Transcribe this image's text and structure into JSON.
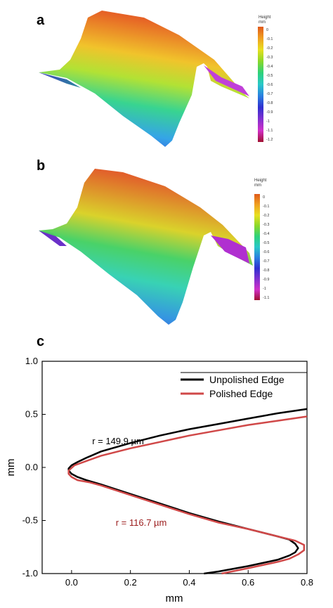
{
  "panels": {
    "a": {
      "letter": "a",
      "colorbar": {
        "title": "Height",
        "unit": "mm",
        "ticks": [
          "0",
          "-0.1",
          "-0.2",
          "-0.3",
          "-0.4",
          "-0.5",
          "-0.6",
          "-0.7",
          "-0.8",
          "-0.9",
          "-1",
          "-1.1",
          "-1.2"
        ]
      }
    },
    "b": {
      "letter": "b",
      "colorbar": {
        "title": "Height",
        "unit": "mm",
        "ticks": [
          "0",
          "-0.1",
          "-0.2",
          "-0.3",
          "-0.4",
          "-0.5",
          "-0.6",
          "-0.7",
          "-0.8",
          "-0.9",
          "-1",
          "-1.1"
        ]
      }
    },
    "c": {
      "letter": "c"
    }
  },
  "colors": {
    "unpolished": "#000000",
    "polished": "#d04848",
    "annotation_polished": "#9b1c1c"
  },
  "chart_data": {
    "type": "line",
    "title": "",
    "xlabel": "mm",
    "ylabel": "mm",
    "xlim": [
      -0.1,
      0.8
    ],
    "ylim": [
      -1.0,
      1.0
    ],
    "xticks": [
      "0.0",
      "0.2",
      "0.4",
      "0.6",
      "0.8"
    ],
    "yticks": [
      "1.0",
      "0.5",
      "0.0",
      "-0.5",
      "-1.0"
    ],
    "legend_position": "top-right",
    "series": [
      {
        "name": "Unpolished Edge",
        "x": [
          0.8,
          0.7,
          0.6,
          0.5,
          0.4,
          0.3,
          0.2,
          0.1,
          0.05,
          0.02,
          0.0,
          -0.01,
          -0.01,
          0.0,
          0.02,
          0.05,
          0.1,
          0.2,
          0.3,
          0.4,
          0.5,
          0.6,
          0.7,
          0.74,
          0.76,
          0.77,
          0.76,
          0.74,
          0.7,
          0.6,
          0.5,
          0.45
        ],
        "y": [
          0.55,
          0.51,
          0.46,
          0.41,
          0.36,
          0.3,
          0.23,
          0.15,
          0.09,
          0.05,
          0.02,
          -0.01,
          -0.03,
          -0.06,
          -0.09,
          -0.12,
          -0.16,
          -0.25,
          -0.34,
          -0.43,
          -0.51,
          -0.58,
          -0.65,
          -0.68,
          -0.72,
          -0.76,
          -0.8,
          -0.83,
          -0.87,
          -0.93,
          -0.98,
          -1.0
        ]
      },
      {
        "name": "Polished Edge",
        "x": [
          0.8,
          0.7,
          0.6,
          0.5,
          0.4,
          0.3,
          0.2,
          0.1,
          0.05,
          0.01,
          -0.01,
          -0.01,
          0.0,
          0.02,
          0.06,
          0.1,
          0.2,
          0.3,
          0.4,
          0.5,
          0.6,
          0.7,
          0.76,
          0.79,
          0.79,
          0.77,
          0.74,
          0.7,
          0.6,
          0.51
        ],
        "y": [
          0.48,
          0.44,
          0.4,
          0.35,
          0.3,
          0.24,
          0.18,
          0.11,
          0.06,
          0.02,
          -0.03,
          -0.06,
          -0.09,
          -0.12,
          -0.14,
          -0.17,
          -0.26,
          -0.35,
          -0.44,
          -0.52,
          -0.58,
          -0.65,
          -0.69,
          -0.73,
          -0.78,
          -0.82,
          -0.86,
          -0.89,
          -0.95,
          -1.0
        ]
      }
    ],
    "annotations": [
      {
        "text": "r = 149.9  µm",
        "x": 0.07,
        "y": 0.22,
        "color_key": "unpolished"
      },
      {
        "text": "r = 116.7 µm",
        "x": 0.15,
        "y": -0.55,
        "color_key": "annotation_polished"
      }
    ]
  }
}
